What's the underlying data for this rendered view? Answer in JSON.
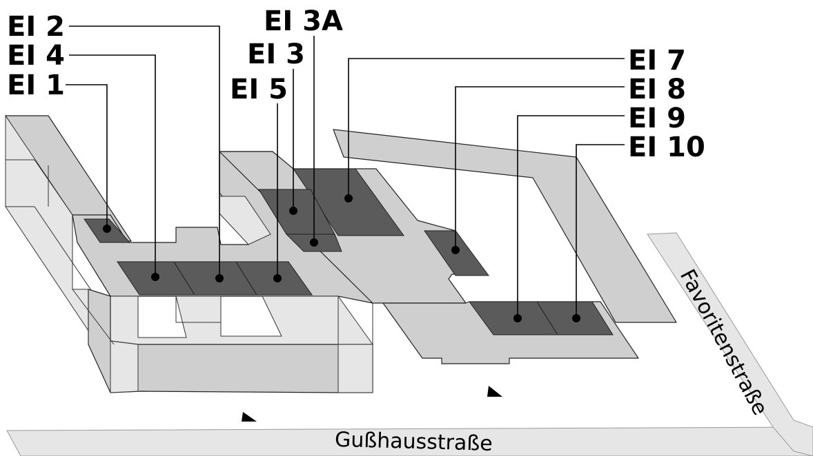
{
  "labels": {
    "ei1": "EI 1",
    "ei2": "EI 2",
    "ei3": "EI 3",
    "ei3a": "EI 3A",
    "ei4": "EI 4",
    "ei5": "EI 5",
    "ei7": "EI 7",
    "ei8": "EI 8",
    "ei9": "EI 9",
    "ei10": "EI 10"
  },
  "streets": {
    "south": "Gußhausstraße",
    "east": "Favoritenstraße"
  },
  "colors": {
    "room": "#5b5b5b",
    "slab": "#cfcfcf",
    "wall": "#e6e6e6"
  }
}
